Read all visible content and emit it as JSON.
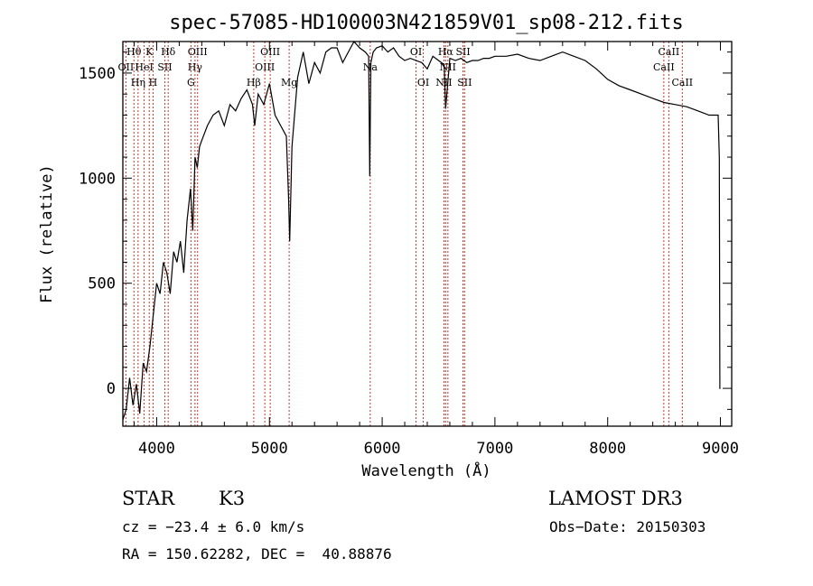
{
  "chart_data": {
    "type": "line",
    "title": "spec-57085-HD100003N421859V01_sp08-212.fits",
    "xlabel": "Wavelength (Å)",
    "ylabel": "Flux (relative)",
    "xlim": [
      3700,
      9100
    ],
    "ylim": [
      -180,
      1650
    ],
    "xticks": [
      4000,
      5000,
      6000,
      7000,
      8000,
      9000
    ],
    "yticks": [
      0,
      500,
      1000,
      1500
    ],
    "series": [
      {
        "name": "flux",
        "x": [
          3700,
          3730,
          3760,
          3790,
          3820,
          3850,
          3880,
          3910,
          3940,
          3970,
          4000,
          4030,
          4060,
          4090,
          4120,
          4150,
          4180,
          4210,
          4240,
          4270,
          4300,
          4320,
          4340,
          4360,
          4380,
          4400,
          4450,
          4500,
          4550,
          4600,
          4650,
          4700,
          4750,
          4800,
          4850,
          4870,
          4900,
          4950,
          5000,
          5050,
          5100,
          5150,
          5170,
          5180,
          5200,
          5250,
          5300,
          5350,
          5400,
          5450,
          5500,
          5550,
          5600,
          5650,
          5700,
          5750,
          5800,
          5850,
          5880,
          5890,
          5900,
          5920,
          5950,
          6000,
          6050,
          6100,
          6150,
          6200,
          6250,
          6300,
          6350,
          6400,
          6450,
          6500,
          6550,
          6563,
          6600,
          6650,
          6700,
          6750,
          6800,
          6850,
          6900,
          6950,
          7000,
          7100,
          7200,
          7300,
          7400,
          7500,
          7600,
          7700,
          7800,
          7900,
          8000,
          8100,
          8200,
          8300,
          8400,
          8500,
          8600,
          8700,
          8800,
          8900,
          8980,
          8990,
          8995,
          9000
        ],
        "y": [
          -150,
          -100,
          50,
          -80,
          20,
          -120,
          120,
          80,
          200,
          350,
          500,
          450,
          600,
          550,
          450,
          650,
          600,
          700,
          550,
          800,
          950,
          750,
          1100,
          1050,
          1150,
          1180,
          1250,
          1300,
          1320,
          1250,
          1350,
          1320,
          1380,
          1420,
          1350,
          1250,
          1400,
          1350,
          1450,
          1300,
          1250,
          1200,
          900,
          700,
          1150,
          1480,
          1600,
          1450,
          1550,
          1500,
          1600,
          1620,
          1620,
          1550,
          1600,
          1650,
          1620,
          1600,
          1580,
          1010,
          1550,
          1600,
          1620,
          1630,
          1600,
          1620,
          1580,
          1560,
          1570,
          1560,
          1550,
          1520,
          1580,
          1560,
          1540,
          1330,
          1570,
          1560,
          1570,
          1550,
          1560,
          1560,
          1570,
          1570,
          1580,
          1580,
          1590,
          1570,
          1560,
          1580,
          1600,
          1580,
          1560,
          1520,
          1470,
          1440,
          1420,
          1400,
          1380,
          1360,
          1350,
          1340,
          1320,
          1300,
          1300,
          1100,
          0,
          0
        ]
      }
    ],
    "line_markers": [
      {
        "wl": 3727,
        "labels": [
          "OII"
        ],
        "row": 2
      },
      {
        "wl": 3798,
        "labels": [
          "Hθ"
        ],
        "row": 1
      },
      {
        "wl": 3835,
        "labels": [
          "Hη"
        ],
        "row": 3
      },
      {
        "wl": 3889,
        "labels": [
          "HeI"
        ],
        "row": 2
      },
      {
        "wl": 3934,
        "labels": [
          "K"
        ],
        "row": 1
      },
      {
        "wl": 3968,
        "labels": [
          "H"
        ],
        "row": 3
      },
      {
        "wl": 4072,
        "labels": [
          "SII"
        ],
        "row": 2
      },
      {
        "wl": 4102,
        "labels": [
          "Hδ"
        ],
        "row": 1
      },
      {
        "wl": 4304,
        "labels": [
          "G"
        ],
        "row": 3
      },
      {
        "wl": 4340,
        "labels": [
          "Hγ"
        ],
        "row": 2
      },
      {
        "wl": 4363,
        "labels": [
          "OIII"
        ],
        "row": 1
      },
      {
        "wl": 4861,
        "labels": [
          "Hβ"
        ],
        "row": 3
      },
      {
        "wl": 4959,
        "labels": [
          "OIII"
        ],
        "row": 2
      },
      {
        "wl": 5007,
        "labels": [
          "OIII"
        ],
        "row": 1
      },
      {
        "wl": 5175,
        "labels": [
          "Mg"
        ],
        "row": 3
      },
      {
        "wl": 5894,
        "labels": [
          "Na"
        ],
        "row": 2
      },
      {
        "wl": 6300,
        "labels": [
          "OI"
        ],
        "row": 1
      },
      {
        "wl": 6364,
        "labels": [
          "OI"
        ],
        "row": 3
      },
      {
        "wl": 6548,
        "labels": [
          "NII"
        ],
        "row": 3
      },
      {
        "wl": 6563,
        "labels": [
          "Hα"
        ],
        "row": 1
      },
      {
        "wl": 6583,
        "labels": [
          "NII"
        ],
        "row": 2
      },
      {
        "wl": 6717,
        "labels": [
          "SII"
        ],
        "row": 1
      },
      {
        "wl": 6731,
        "labels": [
          "SII"
        ],
        "row": 3
      },
      {
        "wl": 8498,
        "labels": [
          "CaII"
        ],
        "row": 2
      },
      {
        "wl": 8542,
        "labels": [
          "CaII"
        ],
        "row": 1
      },
      {
        "wl": 8662,
        "labels": [
          "CaII"
        ],
        "row": 3
      }
    ]
  },
  "info": {
    "class": "STAR",
    "subclass": "K3",
    "survey": "LAMOST DR3",
    "cz": "cz = −23.4 ± 6.0 km/s",
    "obs_date": "Obs−Date: 20150303",
    "coords": "RA = 150.62282, DEC =  40.88876"
  }
}
